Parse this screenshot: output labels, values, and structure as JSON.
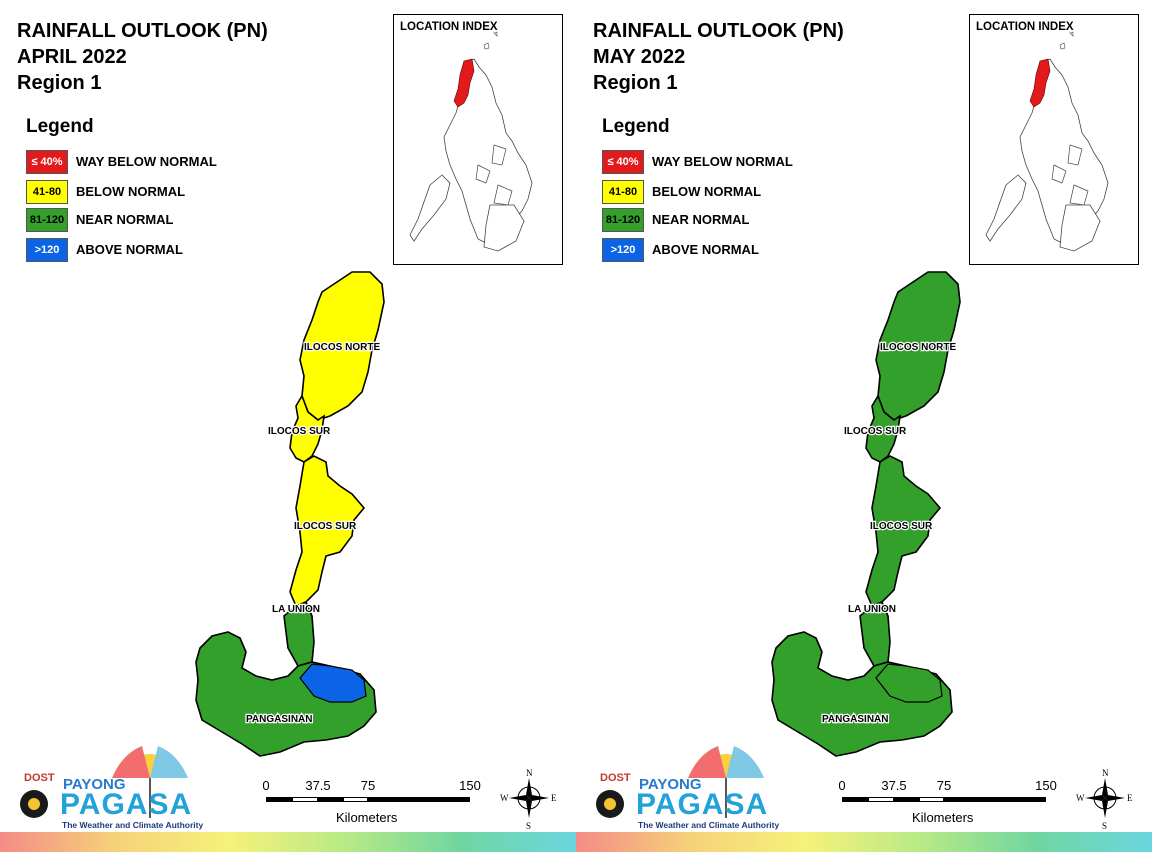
{
  "panels": [
    {
      "title_line1": "RAINFALL OUTLOOK (PN)",
      "title_line2": "APRIL 2022",
      "title_line3": "Region 1",
      "legend_title": "Legend",
      "legend": [
        {
          "range": "≤ 40%",
          "label": "WAY BELOW NORMAL",
          "color": "#e31a1c"
        },
        {
          "range": "41-80",
          "label": "BELOW NORMAL",
          "color": "#ffff00"
        },
        {
          "range": "81-120",
          "label": "NEAR NORMAL",
          "color": "#33a02c"
        },
        {
          "range": ">120",
          "label": "ABOVE NORMAL",
          "color": "#0b63e5"
        }
      ],
      "inset_title": "LOCATION INDEX",
      "provinces": {
        "ilocos_norte": {
          "label": "ILOCOS NORTE",
          "category": "BELOW NORMAL",
          "color": "#ffff00"
        },
        "ilocos_sur_north": {
          "label": "ILOCOS SUR",
          "category": "BELOW NORMAL",
          "color": "#ffff00"
        },
        "ilocos_sur_south": {
          "label": "ILOCOS SUR",
          "category": "BELOW NORMAL",
          "color": "#ffff00"
        },
        "la_union": {
          "label": "LA UNION",
          "category": "NEAR NORMAL",
          "color": "#33a02c"
        },
        "pangasinan": {
          "label": "PANGASINAN",
          "category": "NEAR NORMAL",
          "color": "#33a02c"
        },
        "pangasinan_east": {
          "category": "ABOVE NORMAL",
          "color": "#0b63e5"
        }
      }
    },
    {
      "title_line1": "RAINFALL OUTLOOK (PN)",
      "title_line2": "MAY 2022",
      "title_line3": "Region 1",
      "legend_title": "Legend",
      "legend": [
        {
          "range": "≤ 40%",
          "label": "WAY BELOW NORMAL",
          "color": "#e31a1c"
        },
        {
          "range": "41-80",
          "label": "BELOW NORMAL",
          "color": "#ffff00"
        },
        {
          "range": "81-120",
          "label": "NEAR NORMAL",
          "color": "#33a02c"
        },
        {
          "range": ">120",
          "label": "ABOVE NORMAL",
          "color": "#0b63e5"
        }
      ],
      "inset_title": "LOCATION INDEX",
      "provinces": {
        "ilocos_norte": {
          "label": "ILOCOS NORTE",
          "category": "NEAR NORMAL",
          "color": "#33a02c"
        },
        "ilocos_sur_north": {
          "label": "ILOCOS SUR",
          "category": "NEAR NORMAL",
          "color": "#33a02c"
        },
        "ilocos_sur_south": {
          "label": "ILOCOS SUR",
          "category": "NEAR NORMAL",
          "color": "#33a02c"
        },
        "la_union": {
          "label": "LA UNION",
          "category": "NEAR NORMAL",
          "color": "#33a02c"
        },
        "pangasinan": {
          "label": "PANGASINAN",
          "category": "NEAR NORMAL",
          "color": "#33a02c"
        },
        "pangasinan_east": {
          "category": "NEAR NORMAL",
          "color": "#33a02c"
        }
      }
    }
  ],
  "logo": {
    "dost": "DOST",
    "payong": "PAYONG",
    "pagasa": "PAGASA",
    "tagline": "The Weather and Climate Authority"
  },
  "scale": {
    "ticks": [
      "0",
      "37.5",
      "75",
      "150"
    ],
    "units": "Kilometers"
  },
  "compass": {
    "n": "N",
    "s": "S",
    "e": "E",
    "w": "W"
  },
  "colors": {
    "border": "#000000",
    "region_highlight": "#e31a1c"
  }
}
